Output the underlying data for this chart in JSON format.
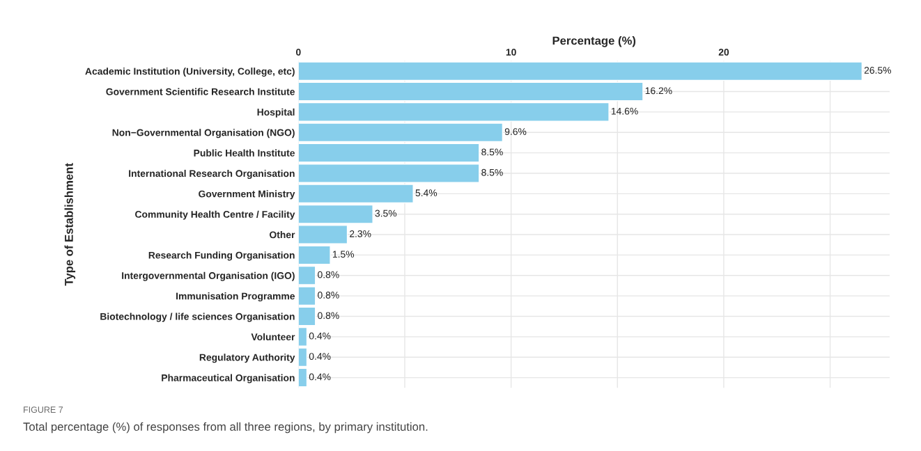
{
  "chart_data": {
    "type": "bar",
    "orientation": "horizontal",
    "xlabel": "Percentage (%)",
    "ylabel": "Type of Establishment",
    "categories": [
      "Academic Institution (University, College, etc)",
      "Government Scientific Research Institute",
      "Hospital",
      "Non−Governmental Organisation (NGO)",
      "Public Health Institute",
      "International Research Organisation",
      "Government Ministry",
      "Community Health Centre / Facility",
      "Other",
      "Research Funding Organisation",
      "Intergovernmental Organisation (IGO)",
      "Immunisation Programme",
      "Biotechnology / life sciences Organisation",
      "Volunteer",
      "Regulatory Authority",
      "Pharmaceutical Organisation"
    ],
    "values": [
      26.5,
      16.2,
      14.6,
      9.6,
      8.5,
      8.5,
      5.4,
      3.5,
      2.3,
      1.5,
      0.8,
      0.8,
      0.8,
      0.4,
      0.4,
      0.4
    ],
    "value_labels": [
      "26.5%",
      "16.2%",
      "14.6%",
      "9.6%",
      "8.5%",
      "8.5%",
      "5.4%",
      "3.5%",
      "2.3%",
      "1.5%",
      "0.8%",
      "0.8%",
      "0.8%",
      "0.4%",
      "0.4%",
      "0.4%"
    ],
    "color": "#87ceeb",
    "xlim": [
      0,
      27.8
    ],
    "xticks": [
      0,
      {
        "value": 5,
        "label": null
      },
      10,
      {
        "value": 15,
        "label": null
      },
      20,
      {
        "value": 25,
        "label": null
      }
    ],
    "grid": true,
    "annotations": [
      "FIGURE 7",
      "Total percentage (%) of responses from all three regions, by primary institution."
    ]
  }
}
